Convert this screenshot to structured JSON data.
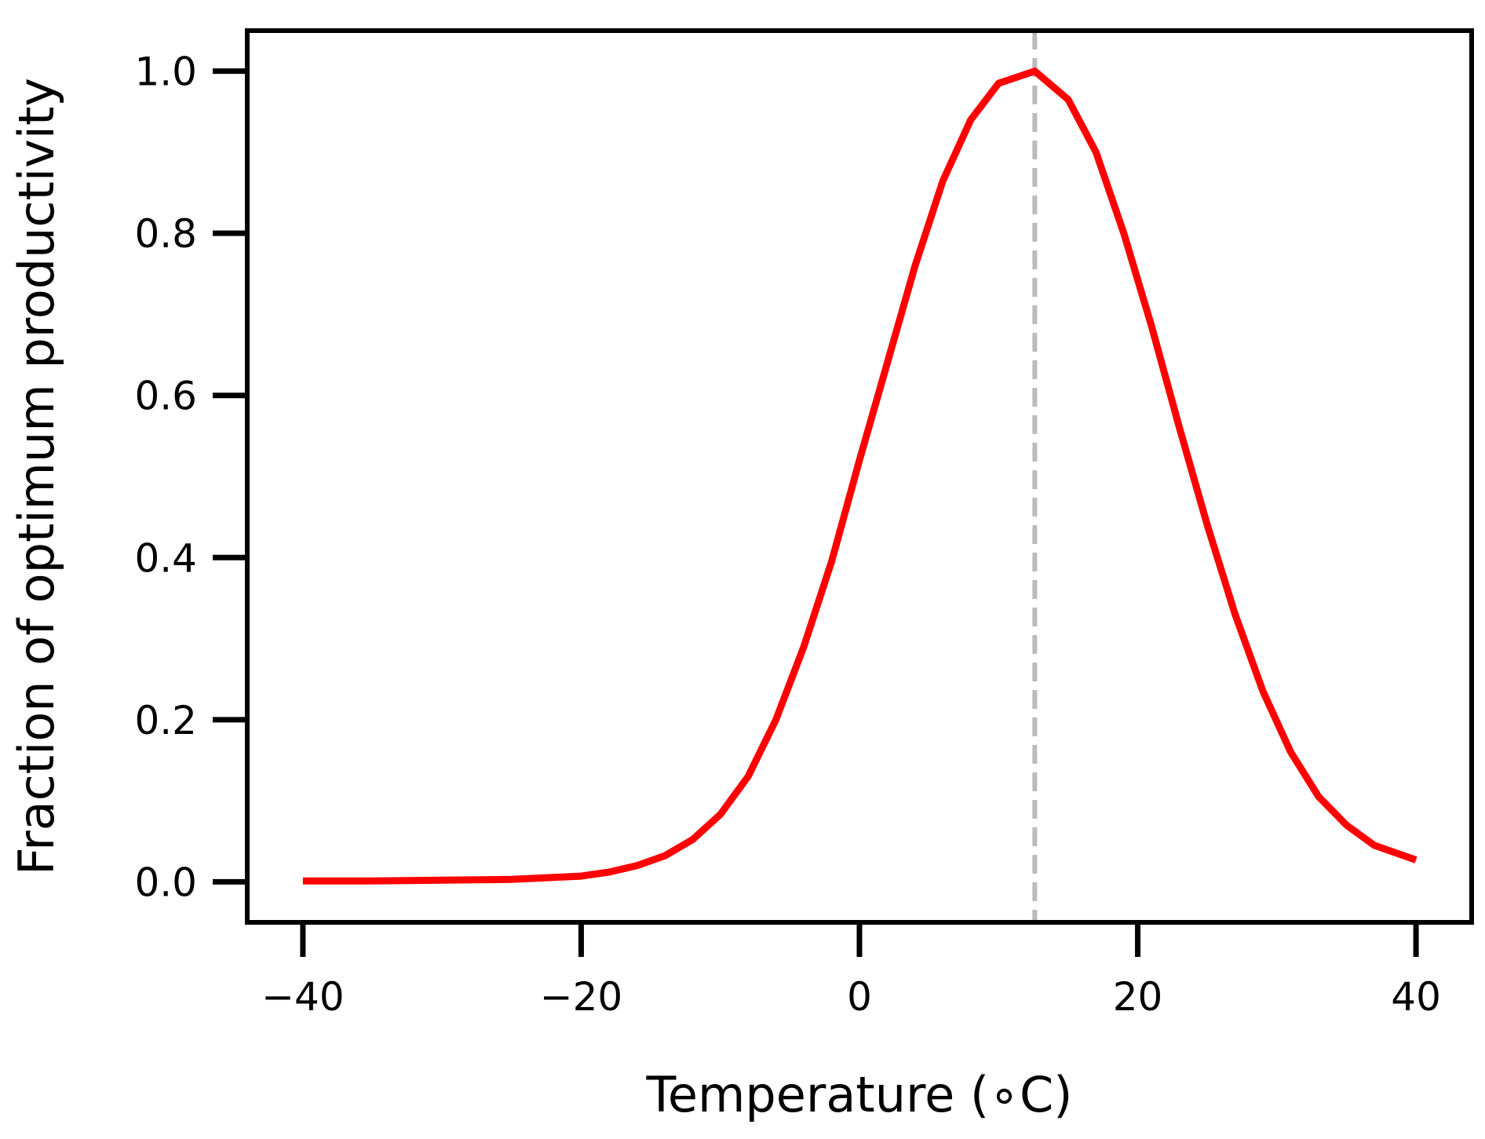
{
  "chart_data": {
    "type": "line",
    "title": "",
    "xlabel": "Temperature (∘C)",
    "ylabel": "Fraction of optimum productivity",
    "xlim": [
      -44,
      44
    ],
    "ylim": [
      -0.05,
      1.05
    ],
    "xticks": [
      -40,
      -20,
      0,
      20,
      40
    ],
    "xtick_labels": [
      "−40",
      "−20",
      "0",
      "20",
      "40"
    ],
    "yticks": [
      0.0,
      0.2,
      0.4,
      0.6,
      0.8,
      1.0
    ],
    "ytick_labels": [
      "0.0",
      "0.2",
      "0.4",
      "0.6",
      "0.8",
      "1.0"
    ],
    "grid": false,
    "series": [
      {
        "color": "#ff0000",
        "x": [
          -40,
          -35,
          -30,
          -25,
          -20,
          -18,
          -16,
          -14,
          -12,
          -10,
          -8,
          -6,
          -4,
          -2,
          0,
          2,
          4,
          6,
          8,
          10,
          12.6,
          15,
          17,
          19,
          21,
          23,
          25,
          27,
          29,
          31,
          33,
          35,
          37,
          40
        ],
        "y": [
          0.001,
          0.001,
          0.002,
          0.003,
          0.007,
          0.012,
          0.02,
          0.032,
          0.052,
          0.083,
          0.13,
          0.2,
          0.29,
          0.395,
          0.52,
          0.64,
          0.76,
          0.865,
          0.94,
          0.985,
          1.0,
          0.965,
          0.9,
          0.8,
          0.685,
          0.56,
          0.44,
          0.33,
          0.235,
          0.16,
          0.105,
          0.07,
          0.045,
          0.027
        ]
      }
    ],
    "reference_lines": [
      {
        "axis": "x",
        "value": 12.6,
        "style": "dashed",
        "color": "#bbbbbb"
      }
    ]
  }
}
